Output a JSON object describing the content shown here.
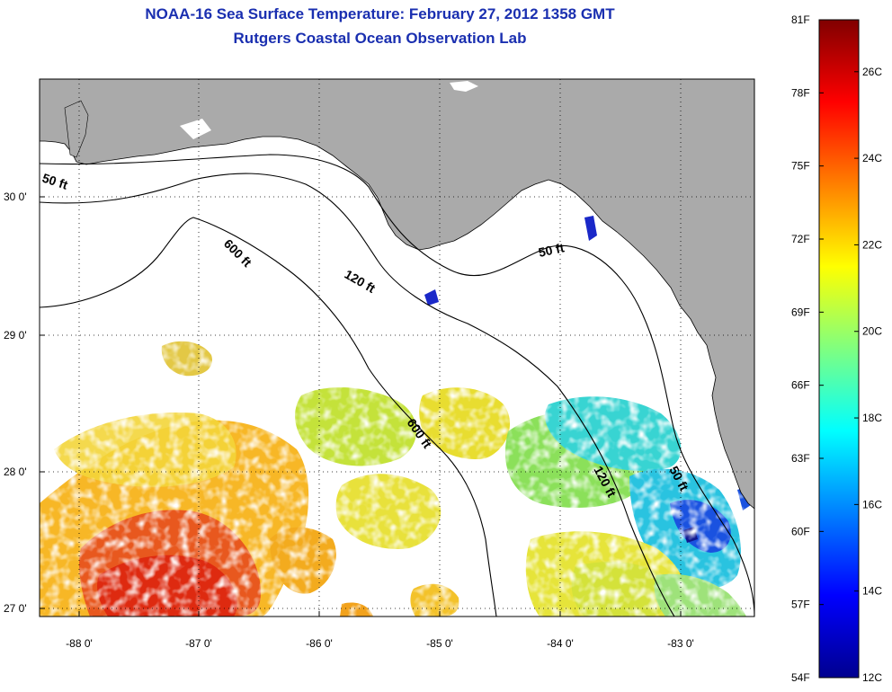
{
  "title": {
    "line1": "NOAA-16 Sea Surface Temperature:  February 27, 2012 1358 GMT",
    "line2": "Rutgers Coastal Ocean Observation Lab"
  },
  "map": {
    "longitude_labels": [
      "-88 0'",
      "-87 0'",
      "-86 0'",
      "-85 0'",
      "-84 0'",
      "-83 0'"
    ],
    "latitude_labels": [
      "30 0'",
      "29 0'",
      "28 0'",
      "27 0'"
    ],
    "contours": [
      "50 ft",
      "120 ft",
      "600 ft"
    ],
    "contour_labels": [
      "50 ft",
      "600 ft",
      "120 ft",
      "50 ft",
      "600 ft",
      "120 ft",
      "50 ft"
    ],
    "land_color": "#aaaaaa",
    "grid": "dotted"
  },
  "colorbar": {
    "fahrenheit_labels": [
      "81F",
      "78F",
      "75F",
      "72F",
      "69F",
      "66F",
      "63F",
      "60F",
      "57F",
      "54F"
    ],
    "celsius_labels": [
      "26C",
      "24C",
      "22C",
      "20C",
      "18C",
      "16C",
      "14C",
      "12C"
    ],
    "colormap": "jet",
    "min_f": 54,
    "max_f": 81,
    "min_c": 12,
    "max_c": 27.2
  }
}
